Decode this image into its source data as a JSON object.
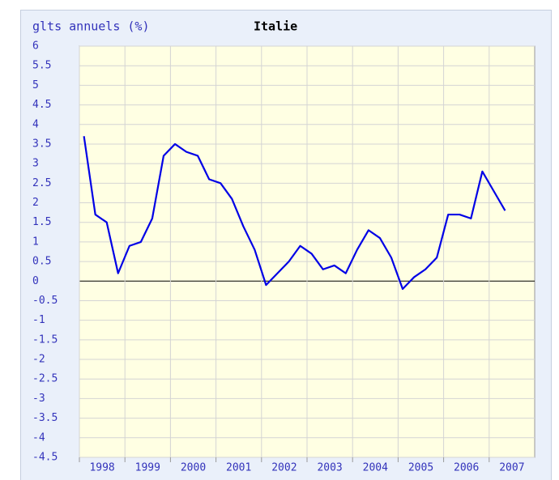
{
  "chart_data": {
    "type": "line",
    "title": "Italie",
    "y_label": "glts annuels (%)",
    "x": [
      1998.1,
      1998.35,
      1998.6,
      1998.85,
      1999.1,
      1999.35,
      1999.6,
      1999.85,
      2000.1,
      2000.35,
      2000.6,
      2000.85,
      2001.1,
      2001.35,
      2001.6,
      2001.85,
      2002.1,
      2002.35,
      2002.6,
      2002.85,
      2003.1,
      2003.35,
      2003.6,
      2003.85,
      2004.1,
      2004.35,
      2004.6,
      2004.85,
      2005.1,
      2005.35,
      2005.6,
      2005.85,
      2006.1,
      2006.35,
      2006.6,
      2006.85,
      2007.1,
      2007.35
    ],
    "series": [
      {
        "name": "Italie",
        "color": "#0000e6",
        "values": [
          3.7,
          1.7,
          1.5,
          0.2,
          0.9,
          1.0,
          1.6,
          3.2,
          3.5,
          3.3,
          3.2,
          2.6,
          2.5,
          2.1,
          1.4,
          0.8,
          -0.1,
          0.2,
          0.5,
          0.9,
          0.7,
          0.3,
          0.4,
          0.2,
          0.8,
          1.3,
          1.1,
          0.6,
          -0.2,
          0.1,
          0.3,
          0.6,
          1.7,
          1.7,
          1.6,
          2.8,
          2.3,
          1.8
        ]
      }
    ],
    "xlim": [
      1998,
      2008
    ],
    "xticks": [
      {
        "value": 1998,
        "label": "1998"
      },
      {
        "value": 1999,
        "label": "1999"
      },
      {
        "value": 2000,
        "label": "2000"
      },
      {
        "value": 2001,
        "label": "2001"
      },
      {
        "value": 2002,
        "label": "2002"
      },
      {
        "value": 2003,
        "label": "2003"
      },
      {
        "value": 2004,
        "label": "2004"
      },
      {
        "value": 2005,
        "label": "2005"
      },
      {
        "value": 2006,
        "label": "2006"
      },
      {
        "value": 2007,
        "label": "2007"
      }
    ],
    "ylim": [
      -4.5,
      6
    ],
    "yticks": [
      6,
      5.5,
      5,
      4.5,
      4,
      3.5,
      3,
      2.5,
      2,
      1.5,
      1,
      0.5,
      0,
      -0.5,
      -1,
      -1.5,
      -2,
      -2.5,
      -3,
      -3.5,
      -4,
      -4.5
    ],
    "grid": true
  }
}
